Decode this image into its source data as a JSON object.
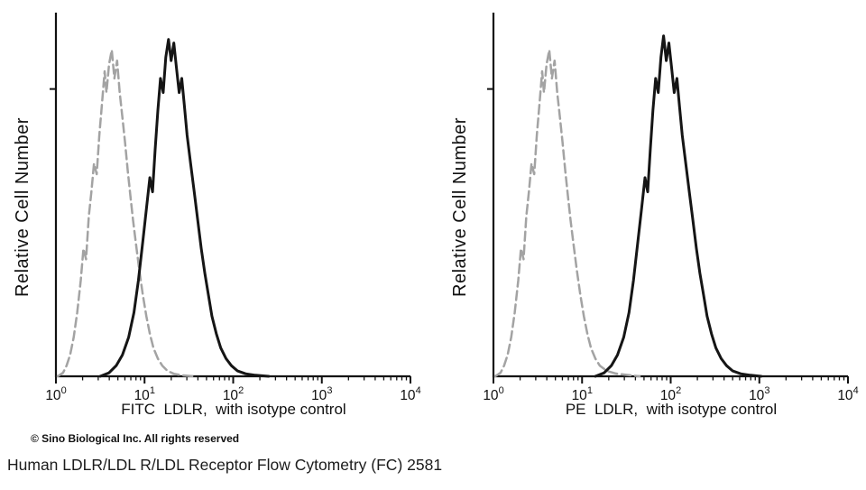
{
  "page": {
    "copyright": "© Sino Biological Inc. All rights reserved",
    "caption": "Human LDLR/LDL R/LDL Receptor Flow Cytometry (FC) 2581"
  },
  "colors": {
    "axis": "#111111",
    "control_curve": "#a3a3a3",
    "sample_curve": "#151515",
    "background": "#ffffff"
  },
  "chart_data": [
    {
      "type": "area",
      "title": "FITC LDLR with isotype control (flow cytometry histogram)",
      "xlabel": "FITC  LDLR,  with isotype control",
      "ylabel": "Relative Cell Number",
      "x_scale": "log10",
      "xlim_log10": [
        0,
        4
      ],
      "x_ticks_exponents": [
        "0",
        "1",
        "2",
        "3",
        "4"
      ],
      "grid": false,
      "legend": "none",
      "series": [
        {
          "name": "isotype control",
          "style": "dashed",
          "color": "#a3a3a3",
          "peak_x_approx": 4.5,
          "points": [
            [
              0.02,
              0
            ],
            [
              0.08,
              0.01
            ],
            [
              0.12,
              0.03
            ],
            [
              0.16,
              0.06
            ],
            [
              0.2,
              0.11
            ],
            [
              0.24,
              0.18
            ],
            [
              0.28,
              0.27
            ],
            [
              0.31,
              0.36
            ],
            [
              0.34,
              0.33
            ],
            [
              0.37,
              0.45
            ],
            [
              0.4,
              0.52
            ],
            [
              0.43,
              0.6
            ],
            [
              0.46,
              0.57
            ],
            [
              0.49,
              0.68
            ],
            [
              0.52,
              0.77
            ],
            [
              0.55,
              0.86
            ],
            [
              0.57,
              0.8
            ],
            [
              0.6,
              0.88
            ],
            [
              0.63,
              0.92
            ],
            [
              0.66,
              0.84
            ],
            [
              0.69,
              0.89
            ],
            [
              0.72,
              0.8
            ],
            [
              0.75,
              0.73
            ],
            [
              0.78,
              0.66
            ],
            [
              0.81,
              0.58
            ],
            [
              0.84,
              0.51
            ],
            [
              0.87,
              0.44
            ],
            [
              0.9,
              0.38
            ],
            [
              0.94,
              0.3
            ],
            [
              0.98,
              0.23
            ],
            [
              1.02,
              0.17
            ],
            [
              1.06,
              0.12
            ],
            [
              1.1,
              0.08
            ],
            [
              1.15,
              0.05
            ],
            [
              1.2,
              0.03
            ],
            [
              1.26,
              0.015
            ],
            [
              1.33,
              0.007
            ],
            [
              1.42,
              0.003
            ],
            [
              1.55,
              0
            ]
          ]
        },
        {
          "name": "LDLR (FITC)",
          "style": "solid",
          "color": "#151515",
          "peak_x_approx": 20,
          "points": [
            [
              0.5,
              0
            ],
            [
              0.6,
              0.01
            ],
            [
              0.68,
              0.03
            ],
            [
              0.75,
              0.06
            ],
            [
              0.82,
              0.11
            ],
            [
              0.88,
              0.18
            ],
            [
              0.93,
              0.27
            ],
            [
              0.98,
              0.38
            ],
            [
              1.02,
              0.47
            ],
            [
              1.06,
              0.56
            ],
            [
              1.09,
              0.52
            ],
            [
              1.12,
              0.64
            ],
            [
              1.15,
              0.75
            ],
            [
              1.18,
              0.84
            ],
            [
              1.21,
              0.8
            ],
            [
              1.24,
              0.9
            ],
            [
              1.27,
              0.95
            ],
            [
              1.3,
              0.89
            ],
            [
              1.33,
              0.94
            ],
            [
              1.36,
              0.87
            ],
            [
              1.39,
              0.8
            ],
            [
              1.42,
              0.84
            ],
            [
              1.45,
              0.76
            ],
            [
              1.48,
              0.68
            ],
            [
              1.52,
              0.6
            ],
            [
              1.56,
              0.52
            ],
            [
              1.6,
              0.44
            ],
            [
              1.64,
              0.36
            ],
            [
              1.68,
              0.29
            ],
            [
              1.72,
              0.23
            ],
            [
              1.76,
              0.17
            ],
            [
              1.81,
              0.12
            ],
            [
              1.86,
              0.08
            ],
            [
              1.92,
              0.05
            ],
            [
              1.98,
              0.03
            ],
            [
              2.05,
              0.015
            ],
            [
              2.14,
              0.007
            ],
            [
              2.25,
              0.003
            ],
            [
              2.4,
              0
            ]
          ]
        }
      ]
    },
    {
      "type": "area",
      "title": "PE LDLR with isotype control (flow cytometry histogram)",
      "xlabel": "PE  LDLR,  with isotype control",
      "ylabel": "Relative Cell Number",
      "x_scale": "log10",
      "xlim_log10": [
        0,
        4
      ],
      "x_ticks_exponents": [
        "0",
        "1",
        "2",
        "3",
        "4"
      ],
      "grid": false,
      "legend": "none",
      "series": [
        {
          "name": "isotype control",
          "style": "dashed",
          "color": "#a3a3a3",
          "peak_x_approx": 4,
          "points": [
            [
              0.02,
              0
            ],
            [
              0.08,
              0.01
            ],
            [
              0.12,
              0.03
            ],
            [
              0.16,
              0.06
            ],
            [
              0.2,
              0.11
            ],
            [
              0.24,
              0.18
            ],
            [
              0.28,
              0.27
            ],
            [
              0.31,
              0.36
            ],
            [
              0.34,
              0.33
            ],
            [
              0.37,
              0.45
            ],
            [
              0.4,
              0.52
            ],
            [
              0.43,
              0.6
            ],
            [
              0.46,
              0.57
            ],
            [
              0.49,
              0.68
            ],
            [
              0.52,
              0.77
            ],
            [
              0.55,
              0.86
            ],
            [
              0.57,
              0.8
            ],
            [
              0.6,
              0.88
            ],
            [
              0.63,
              0.92
            ],
            [
              0.66,
              0.84
            ],
            [
              0.69,
              0.89
            ],
            [
              0.72,
              0.8
            ],
            [
              0.75,
              0.73
            ],
            [
              0.78,
              0.66
            ],
            [
              0.81,
              0.58
            ],
            [
              0.84,
              0.51
            ],
            [
              0.87,
              0.44
            ],
            [
              0.9,
              0.38
            ],
            [
              0.94,
              0.3
            ],
            [
              0.98,
              0.23
            ],
            [
              1.02,
              0.17
            ],
            [
              1.06,
              0.12
            ],
            [
              1.1,
              0.08
            ],
            [
              1.15,
              0.05
            ],
            [
              1.2,
              0.03
            ],
            [
              1.28,
              0.015
            ],
            [
              1.38,
              0.008
            ],
            [
              1.5,
              0.004
            ],
            [
              1.65,
              0
            ]
          ]
        },
        {
          "name": "LDLR (PE)",
          "style": "solid",
          "color": "#151515",
          "peak_x_approx": 85,
          "points": [
            [
              1.15,
              0
            ],
            [
              1.25,
              0.01
            ],
            [
              1.33,
              0.03
            ],
            [
              1.4,
              0.06
            ],
            [
              1.47,
              0.11
            ],
            [
              1.53,
              0.18
            ],
            [
              1.58,
              0.27
            ],
            [
              1.63,
              0.38
            ],
            [
              1.67,
              0.47
            ],
            [
              1.71,
              0.56
            ],
            [
              1.74,
              0.52
            ],
            [
              1.77,
              0.64
            ],
            [
              1.8,
              0.75
            ],
            [
              1.83,
              0.84
            ],
            [
              1.86,
              0.8
            ],
            [
              1.89,
              0.9
            ],
            [
              1.92,
              0.96
            ],
            [
              1.95,
              0.89
            ],
            [
              1.98,
              0.94
            ],
            [
              2.01,
              0.87
            ],
            [
              2.04,
              0.8
            ],
            [
              2.07,
              0.84
            ],
            [
              2.1,
              0.76
            ],
            [
              2.13,
              0.68
            ],
            [
              2.17,
              0.6
            ],
            [
              2.21,
              0.52
            ],
            [
              2.25,
              0.44
            ],
            [
              2.29,
              0.36
            ],
            [
              2.33,
              0.29
            ],
            [
              2.37,
              0.23
            ],
            [
              2.41,
              0.17
            ],
            [
              2.46,
              0.12
            ],
            [
              2.51,
              0.08
            ],
            [
              2.57,
              0.05
            ],
            [
              2.63,
              0.03
            ],
            [
              2.7,
              0.015
            ],
            [
              2.79,
              0.007
            ],
            [
              2.9,
              0.003
            ],
            [
              3.02,
              0
            ]
          ]
        }
      ]
    }
  ]
}
